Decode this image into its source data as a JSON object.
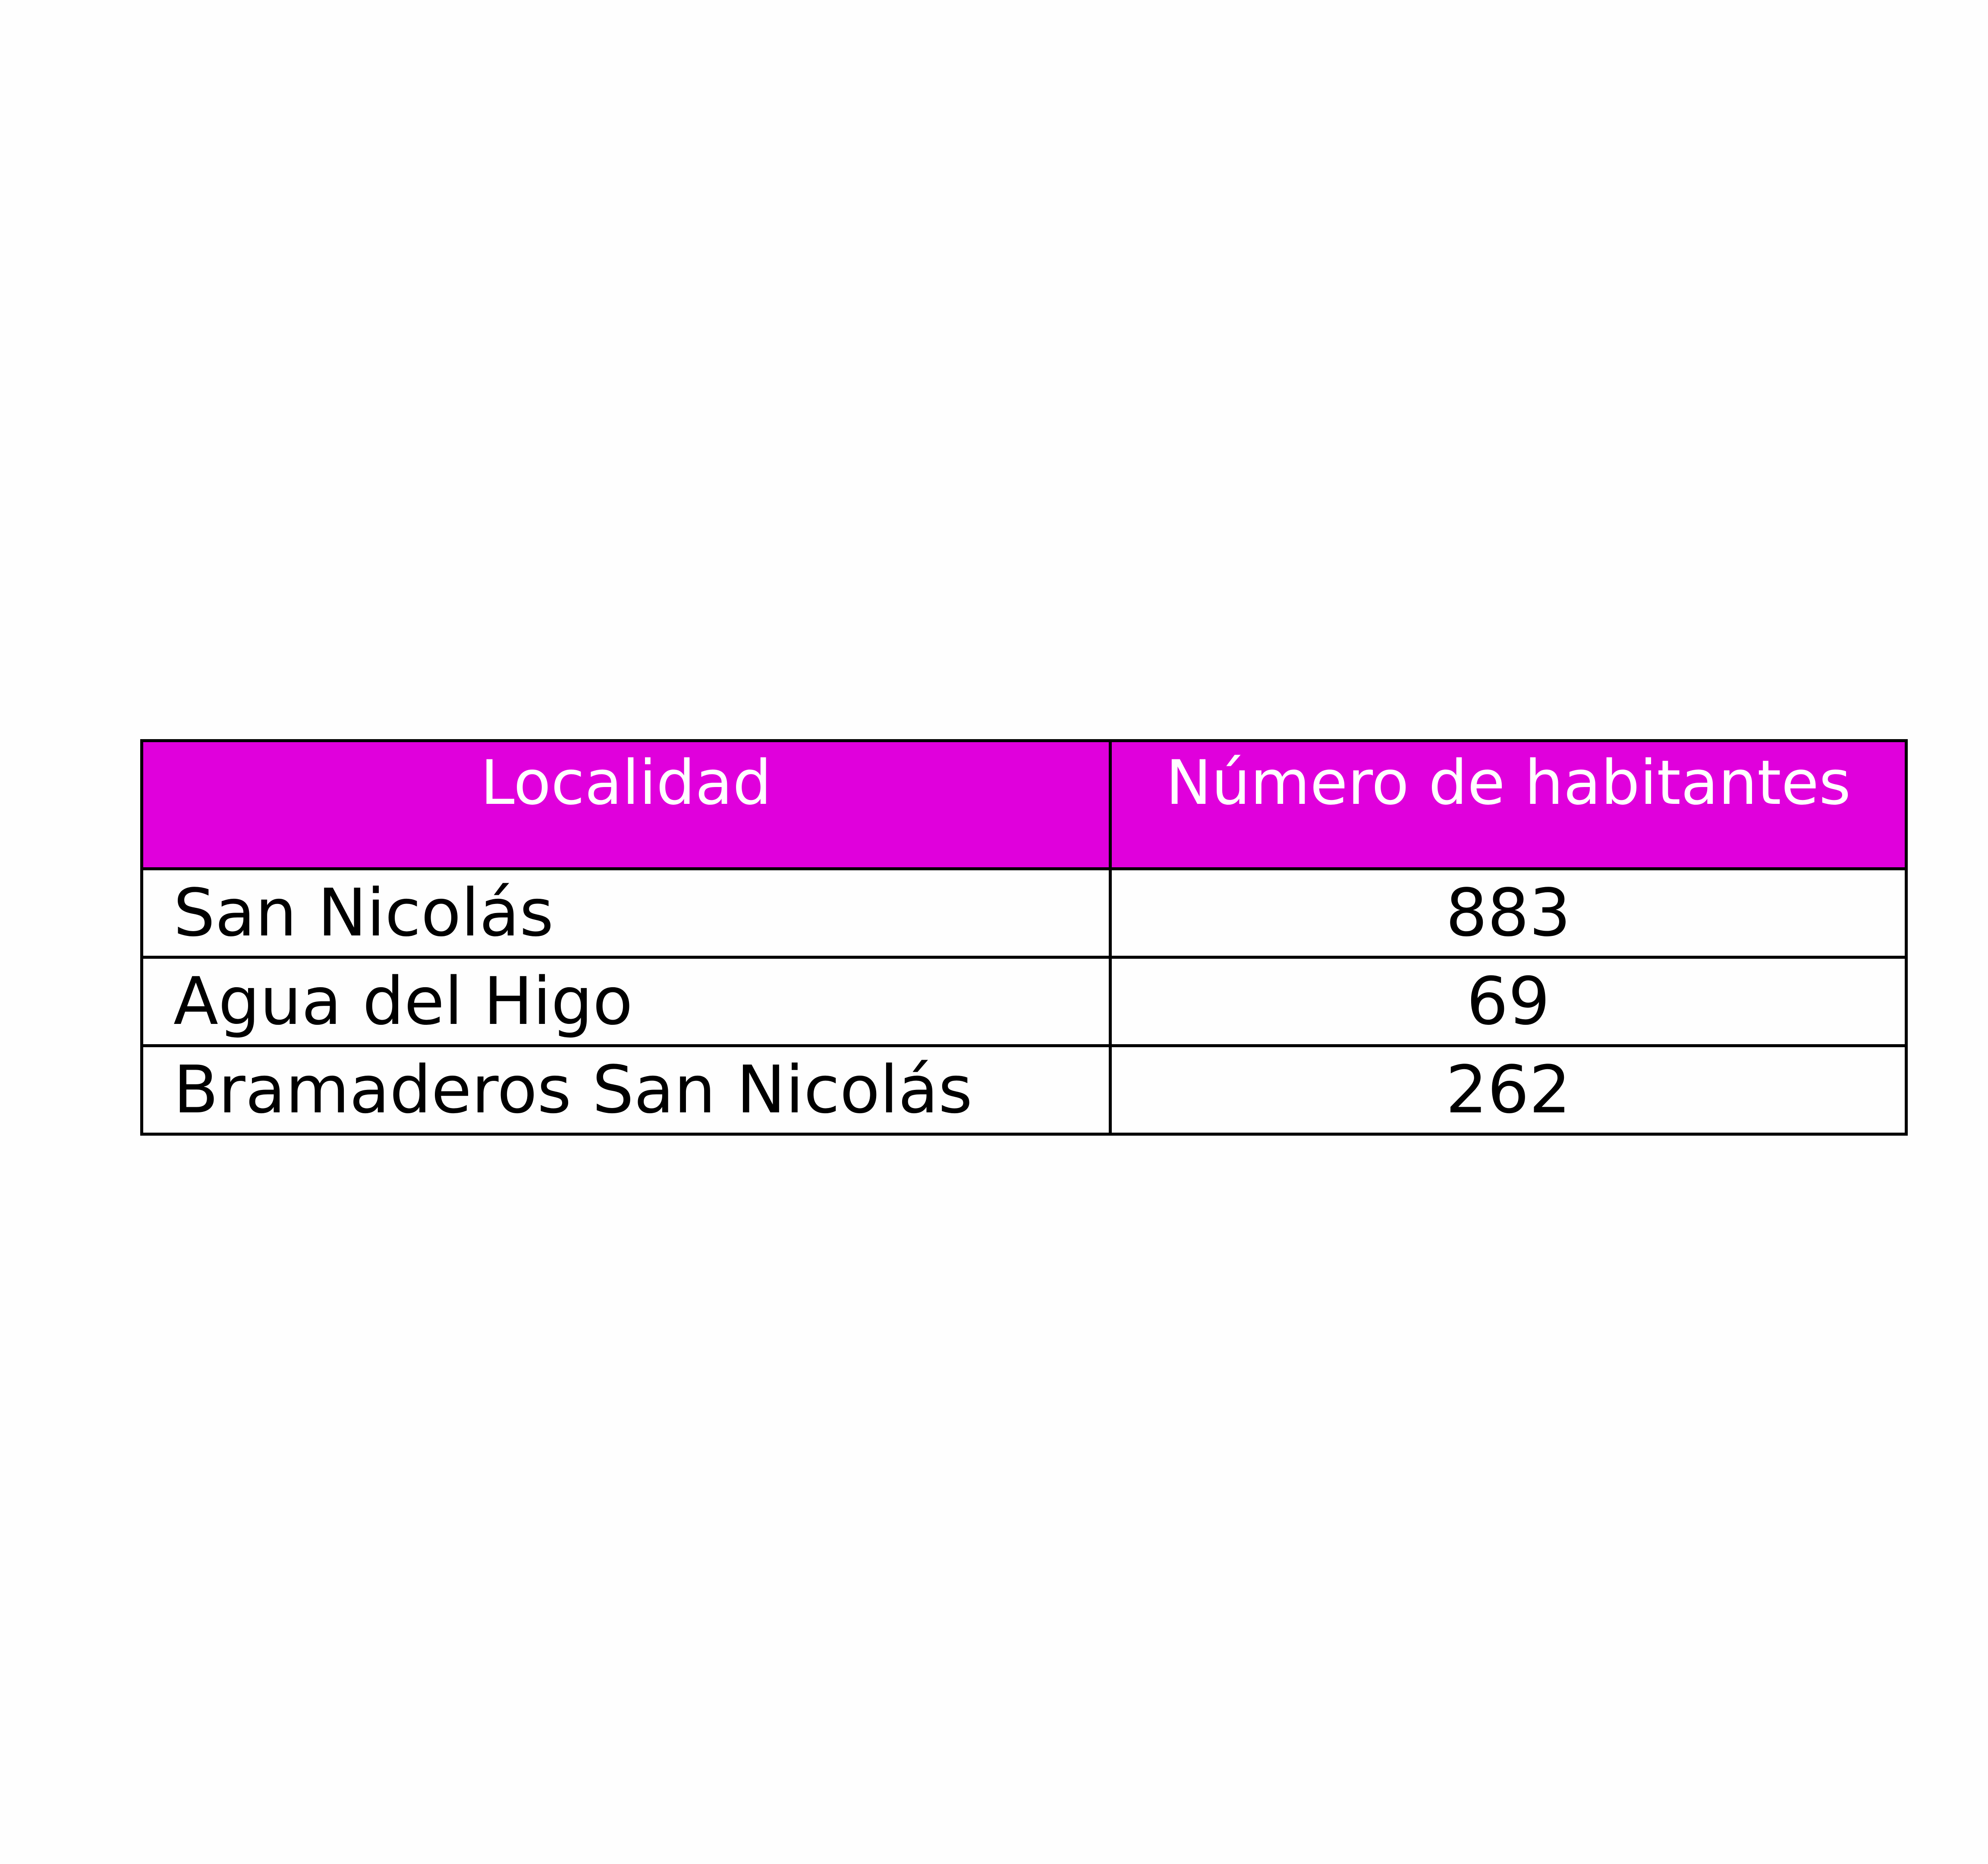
{
  "table": {
    "header_color": "#e000dc",
    "headers": [
      "Localidad",
      "Número de habitantes"
    ],
    "rows": [
      {
        "localidad": "San Nicolás",
        "habitantes": "883"
      },
      {
        "localidad": "Agua del Higo",
        "habitantes": "69"
      },
      {
        "localidad": "Bramaderos San Nicolás",
        "habitantes": "262"
      }
    ]
  }
}
